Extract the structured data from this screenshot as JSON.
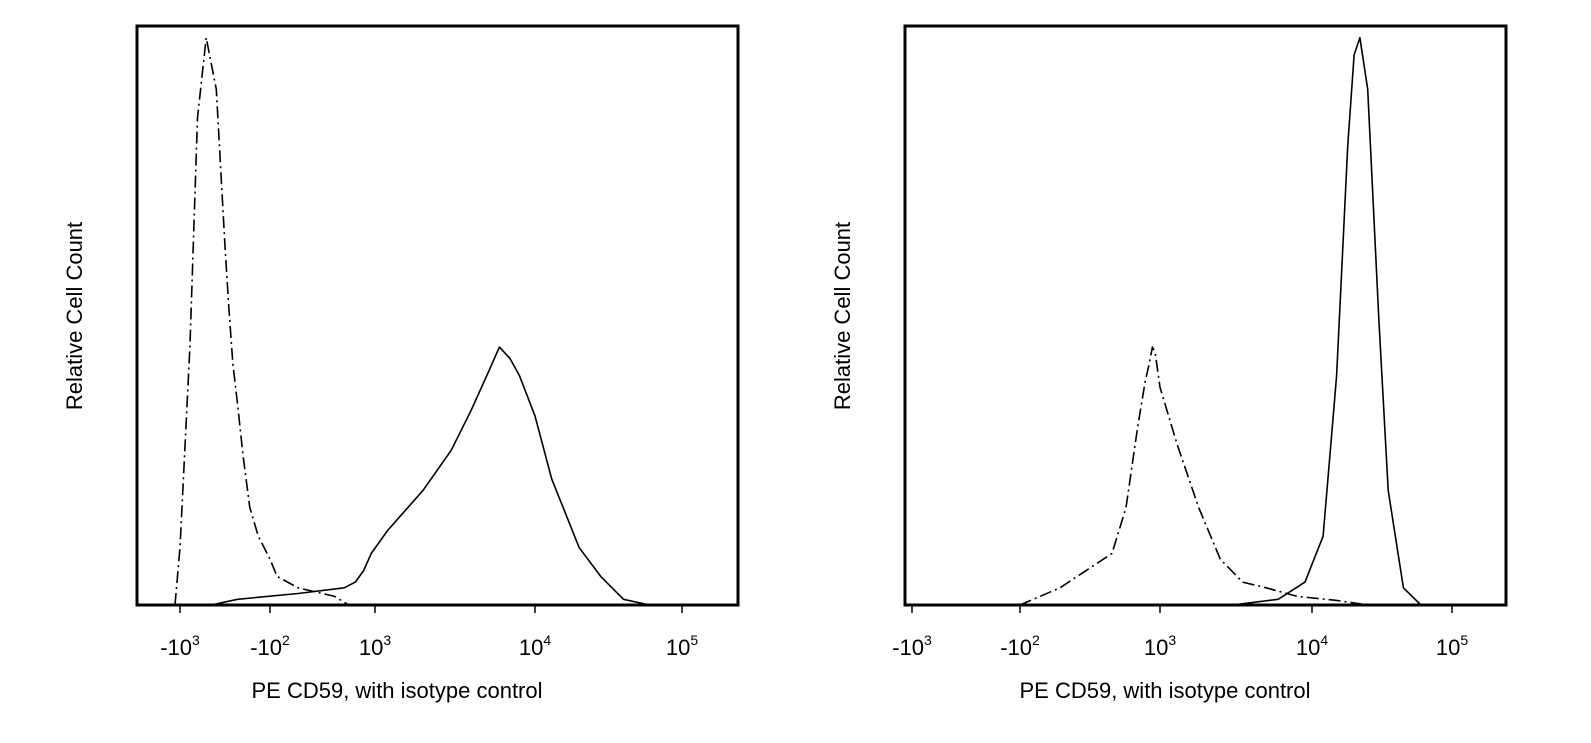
{
  "chart_data": [
    {
      "type": "line",
      "title": "",
      "xlabel": "PE CD59, with isotype control",
      "ylabel": "Relative Cell Count",
      "x_scale": "biexponential",
      "xlim": [
        -5000,
        150000
      ],
      "ylim": [
        0,
        1.0
      ],
      "grid": false,
      "x_ticks": [
        {
          "base": "-10",
          "exp": "3",
          "value": -1000
        },
        {
          "base": "-10",
          "exp": "2",
          "value": -100
        },
        {
          "base": "10",
          "exp": "3",
          "value": 1000
        },
        {
          "base": "10",
          "exp": "4",
          "value": 10000
        },
        {
          "base": "10",
          "exp": "5",
          "value": 100000
        }
      ],
      "series": [
        {
          "style": "dash-dot",
          "x": [
            -1200,
            -1000,
            -850,
            -750,
            -650,
            -550,
            -500,
            -450,
            -400,
            -350,
            -300,
            -250,
            -200,
            -150,
            -100,
            -50,
            0,
            80,
            200
          ],
          "y": [
            0,
            0.1,
            0.45,
            0.85,
            0.99,
            0.9,
            0.72,
            0.62,
            0.52,
            0.42,
            0.35,
            0.26,
            0.17,
            0.12,
            0.08,
            0.05,
            0.03,
            0.015,
            0
          ]
        },
        {
          "style": "solid",
          "x": [
            -600,
            -300,
            0,
            150,
            300,
            500,
            800,
            1200,
            2000,
            3000,
            4000,
            5000,
            6000,
            7000,
            8000,
            10000,
            13000,
            20000,
            28000,
            40000,
            60000
          ],
          "y": [
            0,
            0.01,
            0.02,
            0.03,
            0.04,
            0.06,
            0.09,
            0.13,
            0.2,
            0.27,
            0.34,
            0.4,
            0.45,
            0.43,
            0.4,
            0.33,
            0.22,
            0.1,
            0.05,
            0.01,
            0
          ]
        }
      ]
    },
    {
      "type": "line",
      "title": "",
      "xlabel": "PE CD59, with isotype control",
      "ylabel": "Relative Cell Count",
      "x_scale": "biexponential",
      "xlim": [
        -1000,
        150000
      ],
      "ylim": [
        0,
        1.0
      ],
      "grid": false,
      "x_ticks": [
        {
          "base": "-10",
          "exp": "3",
          "value": -1000
        },
        {
          "base": "-10",
          "exp": "2",
          "value": -100
        },
        {
          "base": "10",
          "exp": "3",
          "value": 1000
        },
        {
          "base": "10",
          "exp": "4",
          "value": 10000
        },
        {
          "base": "10",
          "exp": "5",
          "value": 100000
        }
      ],
      "series": [
        {
          "style": "dash-dot",
          "x": [
            -100,
            0,
            100,
            200,
            350,
            500,
            600,
            700,
            800,
            1000,
            1300,
            1800,
            2500,
            3500,
            5000,
            8000,
            15000,
            25000
          ],
          "y": [
            0,
            0.03,
            0.09,
            0.17,
            0.31,
            0.39,
            0.42,
            0.45,
            0.44,
            0.38,
            0.28,
            0.17,
            0.08,
            0.04,
            0.03,
            0.015,
            0.008,
            0
          ]
        },
        {
          "style": "solid",
          "x": [
            3000,
            6000,
            9000,
            12000,
            15000,
            18000,
            20000,
            22000,
            25000,
            30000,
            35000,
            45000,
            60000
          ],
          "y": [
            0,
            0.01,
            0.04,
            0.12,
            0.4,
            0.8,
            0.96,
            0.99,
            0.9,
            0.5,
            0.2,
            0.03,
            0
          ]
        }
      ]
    }
  ]
}
